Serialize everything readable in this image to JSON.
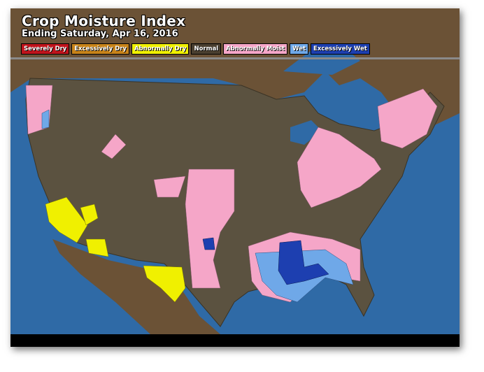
{
  "header": {
    "title": "Crop Moisture Index",
    "subtitle": "Ending Saturday, Apr 16, 2016"
  },
  "legend": [
    {
      "label": "Severely Dry",
      "color": "#c0141c"
    },
    {
      "label": "Excessively Dry",
      "color": "#c8841a"
    },
    {
      "label": "Abnormally Dry",
      "color": "#f0f000"
    },
    {
      "label": "Normal",
      "color": "#4a3f30"
    },
    {
      "label": "Abnormally Moist",
      "color": "#f5a6c8"
    },
    {
      "label": "Wet",
      "color": "#6fa8e8"
    },
    {
      "label": "Excessively Wet",
      "color": "#1d3fb0"
    }
  ],
  "colors": {
    "water": "#2f6aa6",
    "land_outside": "#6b5236",
    "normal": "#5b5240"
  }
}
